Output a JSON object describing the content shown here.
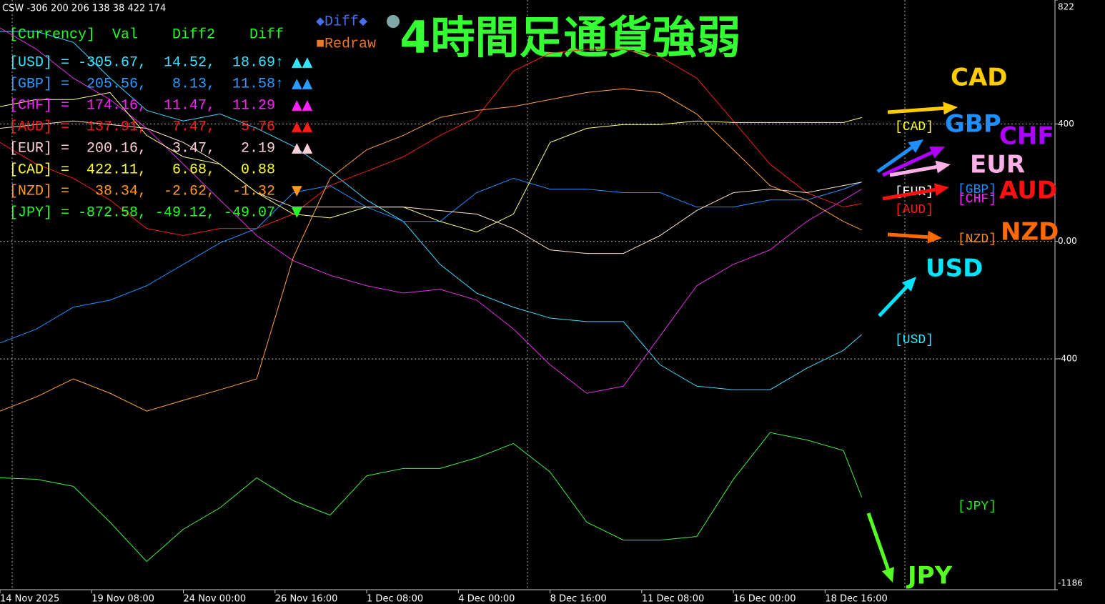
{
  "info": "CSW -306 200 206 138 38 422 174",
  "buttons": {
    "diff": "◆Diff◆",
    "redraw": "■Redraw"
  },
  "title": "4時間足通貨強弱",
  "table": {
    "header": "[Currency]  Val    Diff2    Diff",
    "rows": [
      {
        "text": "[USD] = -305.67,  14.52,  18.69↑",
        "marks": "▲▲",
        "color": "#33e5ff"
      },
      {
        "text": "[GBP] =  205.56,   8.13,  11.58↑",
        "marks": "▲▲",
        "color": "#2a9dff"
      },
      {
        "text": "[CHF] =  174.16,  11.47,  11.29",
        "marks": "▲▲",
        "color": "#ff22ff"
      },
      {
        "text": "[AUD] =  137.91,   7.47,   5.76",
        "marks": "▲▲",
        "color": "#ff1a1a"
      },
      {
        "text": "[EUR] =  200.16,   3.47,   2.19",
        "marks": "▲▲",
        "color": "#ffd0d8"
      },
      {
        "text": "[CAD] =  422.11,   6.68,   0.88",
        "color": "#ffff22"
      },
      {
        "text": "[NZD] =   38.34,  -2.62,  -1.32",
        "marks": "▼",
        "color": "#ff9a1a"
      },
      {
        "text": "[JPY] = -872.58, -49.12, -49.07",
        "marks": "▼",
        "color": "#22ff22"
      }
    ]
  },
  "chart_data": {
    "type": "line",
    "x": [
      0,
      8,
      16,
      24,
      32,
      40,
      48,
      56,
      64,
      72,
      80,
      88,
      96,
      104,
      112,
      120,
      128,
      136,
      144,
      152,
      160,
      168,
      176,
      184,
      188
    ],
    "xlim": [
      0,
      230
    ],
    "xticks": [
      {
        "value": 0,
        "label": "14 Nov 2025"
      },
      {
        "value": 20,
        "label": "19 Nov 08:00"
      },
      {
        "value": 40,
        "label": "24 Nov 00:00"
      },
      {
        "value": 60,
        "label": "26 Nov 16:00"
      },
      {
        "value": 80,
        "label": "1 Dec 08:00"
      },
      {
        "value": 100,
        "label": "4 Dec 00:00"
      },
      {
        "value": 120,
        "label": "8 Dec 16:00"
      },
      {
        "value": 140,
        "label": "11 Dec 08:00"
      },
      {
        "value": 160,
        "label": "16 Dec 00:00"
      },
      {
        "value": 180,
        "label": "18 Dec 16:00"
      }
    ],
    "ylim": [
      -1186,
      822
    ],
    "yticks": [
      822,
      400,
      {
        "value": 0,
        "label": "0.00"
      },
      -400,
      -1186
    ],
    "grid": true,
    "series": [
      {
        "name": "USD",
        "color": "#40d8ff",
        "values": [
          715,
          715,
          678,
          556,
          446,
          410,
          434,
          385,
          324,
          239,
          141,
          68,
          -78,
          -176,
          -224,
          -261,
          -273,
          -273,
          -420,
          -493,
          -505,
          -505,
          -432,
          -371,
          -317
        ]
      },
      {
        "name": "GBP",
        "color": "#1e90ff",
        "values": [
          -346,
          -298,
          -224,
          -200,
          -151,
          -78,
          -5,
          44,
          166,
          190,
          117,
          68,
          68,
          166,
          215,
          178,
          178,
          166,
          166,
          117,
          117,
          141,
          141,
          178,
          202
        ]
      },
      {
        "name": "CHF",
        "color": "#e030e0",
        "values": [
          727,
          654,
          556,
          483,
          385,
          263,
          141,
          20,
          -66,
          -115,
          -151,
          -176,
          -163,
          -200,
          -298,
          -420,
          -517,
          -493,
          -322,
          -151,
          -78,
          -29,
          68,
          141,
          178
        ]
      },
      {
        "name": "AUD",
        "color": "#ee2222",
        "values": [
          337,
          263,
          215,
          141,
          44,
          20,
          44,
          44,
          93,
          190,
          239,
          288,
          361,
          422,
          580,
          641,
          654,
          654,
          629,
          556,
          410,
          263,
          166,
          117,
          129
        ]
      },
      {
        "name": "EUR",
        "color": "#ffe0c8",
        "values": [
          385,
          398,
          410,
          398,
          385,
          337,
          263,
          166,
          117,
          117,
          117,
          117,
          105,
          93,
          44,
          -29,
          -41,
          -41,
          20,
          105,
          166,
          178,
          166,
          190,
          202
        ]
      },
      {
        "name": "CAD",
        "color": "#ffff88",
        "values": [
          459,
          483,
          483,
          507,
          361,
          288,
          263,
          166,
          93,
          80,
          117,
          117,
          68,
          32,
          93,
          337,
          385,
          398,
          398,
          410,
          405,
          405,
          405,
          405,
          422
        ]
      },
      {
        "name": "NZD",
        "color": "#ffa040",
        "values": [
          -578,
          -529,
          -468,
          -517,
          -578,
          -541,
          -505,
          -468,
          -54,
          215,
          312,
          361,
          422,
          446,
          459,
          483,
          507,
          520,
          507,
          434,
          312,
          190,
          141,
          68,
          39
        ]
      },
      {
        "name": "JPY",
        "color": "#44ee44",
        "values": [
          -805,
          -810,
          -834,
          -956,
          -1090,
          -980,
          -907,
          -805,
          -883,
          -932,
          -798,
          -773,
          -773,
          -737,
          -688,
          -785,
          -956,
          -1017,
          -1017,
          -1005,
          -810,
          -651,
          -676,
          -712,
          -871
        ]
      }
    ]
  },
  "line_labels": [
    {
      "text": "[CAD]",
      "color": "#ffff22"
    },
    {
      "text": "[EUR]",
      "color": "#ffffff"
    },
    {
      "text": "[GBP]",
      "color": "#1e90ff"
    },
    {
      "text": "[CHF]",
      "color": "#ff22ff"
    },
    {
      "text": "[AUD]",
      "color": "#ff1a1a"
    },
    {
      "text": "[NZD]",
      "color": "#ff8c1a"
    },
    {
      "text": "[USD]",
      "color": "#33e5ff"
    },
    {
      "text": "[JPY]",
      "color": "#22ee22"
    }
  ],
  "strength_labels": [
    {
      "text": "CAD",
      "color": "#ffcc00"
    },
    {
      "text": "GBP",
      "color": "#1e8fff"
    },
    {
      "text": "CHF",
      "color": "#b000ff"
    },
    {
      "text": "EUR",
      "color": "#ffb0e8"
    },
    {
      "text": "AUD",
      "color": "#ff1010"
    },
    {
      "text": "NZD",
      "color": "#ff6a00"
    },
    {
      "text": "USD",
      "color": "#00e5ff"
    },
    {
      "text": "JPY",
      "color": "#55ff22"
    }
  ]
}
